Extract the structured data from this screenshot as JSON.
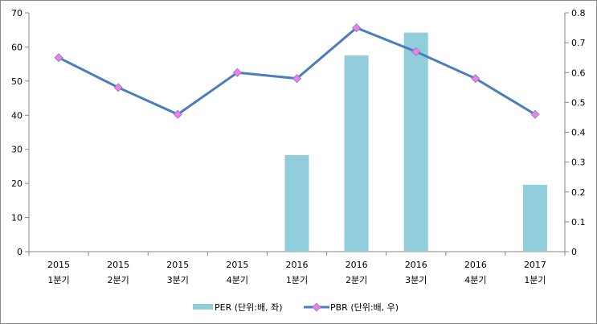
{
  "chart_data": {
    "type": "bar+line",
    "categories": [
      [
        "2015",
        "1분기"
      ],
      [
        "2015",
        "2분기"
      ],
      [
        "2015",
        "3분기"
      ],
      [
        "2015",
        "4분기"
      ],
      [
        "2016",
        "1분기"
      ],
      [
        "2016",
        "2분기"
      ],
      [
        "2016",
        "3분기"
      ],
      [
        "2016",
        "4분기"
      ],
      [
        "2017",
        "1분기"
      ]
    ],
    "series": [
      {
        "name": "PER (단위:배, 좌)",
        "type": "bar",
        "axis": "left",
        "color": "#92CDDC",
        "values": [
          null,
          null,
          null,
          null,
          28.3,
          57.5,
          64.2,
          null,
          19.6
        ]
      },
      {
        "name": "PBR (단위:배, 우)",
        "type": "line",
        "axis": "right",
        "color": "#4A7EBB",
        "marker_color": "#F07FE0",
        "values": [
          0.65,
          0.55,
          0.46,
          0.6,
          0.58,
          0.75,
          0.67,
          0.58,
          0.46
        ]
      }
    ],
    "left_axis": {
      "range": [
        0,
        70
      ],
      "ticks": [
        "0",
        "10",
        "20",
        "30",
        "40",
        "50",
        "60",
        "70"
      ]
    },
    "right_axis": {
      "range": [
        0,
        0.8
      ],
      "ticks": [
        "0",
        "0.1",
        "0.2",
        "0.3",
        "0.4",
        "0.5",
        "0.6",
        "0.7",
        "0.8"
      ]
    },
    "grid": false,
    "legend": "bottom"
  }
}
